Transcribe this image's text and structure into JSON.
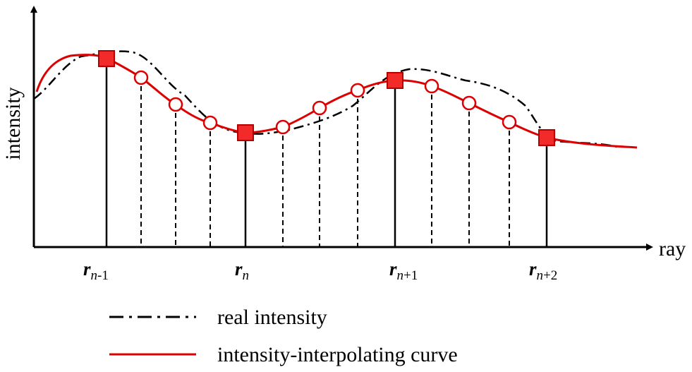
{
  "axes": {
    "y_label": "intensity",
    "x_label": "ray"
  },
  "samples": [
    {
      "base": "r",
      "sub": "n",
      "offset": "-1"
    },
    {
      "base": "r",
      "sub": "n",
      "offset": ""
    },
    {
      "base": "r",
      "sub": "n",
      "offset": "+1"
    },
    {
      "base": "r",
      "sub": "n",
      "offset": "+2"
    }
  ],
  "legend": [
    {
      "label": "real intensity",
      "style": "dash-dot",
      "color": "#000000"
    },
    {
      "label": "intensity-interpolating curve",
      "style": "solid",
      "color": "#dd0000"
    }
  ],
  "colors": {
    "curve": "#dd0000",
    "sample_fill": "#f22a2a",
    "interp_point_fill": "#ffffff",
    "axis": "#000000"
  },
  "interpolated_points_per_interval": 3
}
